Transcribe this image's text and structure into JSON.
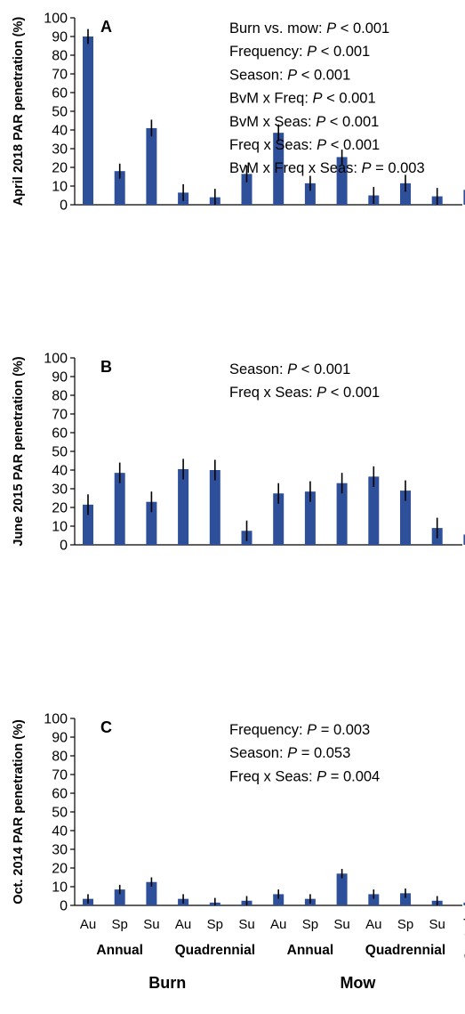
{
  "chart_data": [
    {
      "type": "bar",
      "panel_label": "A",
      "ylabel": "April 2018 PAR penetration (%)",
      "ylim": [
        0,
        100
      ],
      "yticks": [
        0,
        10,
        20,
        30,
        40,
        50,
        60,
        70,
        80,
        90,
        100
      ],
      "categories": [
        "Au",
        "Sp",
        "Su",
        "Au",
        "Sp",
        "Su",
        "Au",
        "Sp",
        "Su",
        "Au",
        "Sp",
        "Su",
        "Control"
      ],
      "values": [
        90,
        18,
        41,
        6.5,
        4,
        16.5,
        38.5,
        11.5,
        25.5,
        5,
        11.5,
        4.5,
        8
      ],
      "errors": [
        4,
        4,
        4.5,
        4.5,
        4.5,
        4.5,
        4.5,
        4,
        4,
        4.5,
        4.5,
        4.5,
        5.5
      ],
      "stats": [
        {
          "pre": "Burn vs. mow: ",
          "p": "P",
          "post": " < 0.001"
        },
        {
          "pre": "Frequency: ",
          "p": "P",
          "post": " < 0.001"
        },
        {
          "pre": "Season: ",
          "p": "P",
          "post": " < 0.001"
        },
        {
          "pre": "BvM x Freq: ",
          "p": "P",
          "post": " < 0.001"
        },
        {
          "pre": "BvM x Seas: ",
          "p": "P",
          "post": " < 0.001"
        },
        {
          "pre": "Freq x Seas: ",
          "p": "P",
          "post": " < 0.001"
        },
        {
          "pre": "BvM x Freq x Seas: ",
          "p": "P",
          "post": " = 0.003"
        }
      ]
    },
    {
      "type": "bar",
      "panel_label": "B",
      "ylabel": "June 2015 PAR penetration (%)",
      "ylim": [
        0,
        100
      ],
      "yticks": [
        0,
        10,
        20,
        30,
        40,
        50,
        60,
        70,
        80,
        90,
        100
      ],
      "categories": [
        "Au",
        "Sp",
        "Su",
        "Au",
        "Sp",
        "Su",
        "Au",
        "Sp",
        "Su",
        "Au",
        "Sp",
        "Su",
        "Control"
      ],
      "values": [
        21.5,
        38.5,
        23,
        40.5,
        40,
        7.5,
        27.5,
        28.5,
        33,
        36.5,
        29,
        9,
        5.5
      ],
      "errors": [
        5.5,
        5.5,
        5.5,
        5.5,
        5.5,
        5.5,
        5.5,
        5.5,
        5.5,
        5.5,
        5.5,
        5.5,
        5
      ],
      "stats": [
        {
          "pre": "Season: ",
          "p": "P",
          "post": " < 0.001"
        },
        {
          "pre": "Freq x Seas: ",
          "p": "P",
          "post": " < 0.001"
        }
      ]
    },
    {
      "type": "bar",
      "panel_label": "C",
      "ylabel": "Oct. 2014 PAR penetration (%)",
      "ylim": [
        0,
        100
      ],
      "yticks": [
        0,
        10,
        20,
        30,
        40,
        50,
        60,
        70,
        80,
        90,
        100
      ],
      "categories": [
        "Au",
        "Sp",
        "Su",
        "Au",
        "Sp",
        "Su",
        "Au",
        "Sp",
        "Su",
        "Au",
        "Sp",
        "Su",
        "Control"
      ],
      "values": [
        3.5,
        8.5,
        12.5,
        3.5,
        1.5,
        2.5,
        6,
        3.5,
        17,
        6,
        6.5,
        2.5,
        1.5
      ],
      "errors": [
        2.5,
        2.5,
        2.5,
        2.5,
        2.5,
        2.5,
        2.5,
        2.5,
        2.5,
        2.5,
        2.5,
        2.5,
        2.5
      ],
      "stats": [
        {
          "pre": "Frequency: ",
          "p": "P",
          "post": " = 0.003"
        },
        {
          "pre": "Season: ",
          "p": "P",
          "post": " = 0.053"
        },
        {
          "pre": "Freq x Seas: ",
          "p": "P",
          "post": " = 0.004"
        }
      ]
    }
  ],
  "x_groups": {
    "frequency": [
      "Annual",
      "Quadrennial",
      "Annual",
      "Quadrennial"
    ],
    "treatment": [
      "Burn",
      "Mow"
    ]
  },
  "colors": {
    "bar": "#2E509B",
    "error_bar": "#000000",
    "axis": "#000000"
  }
}
